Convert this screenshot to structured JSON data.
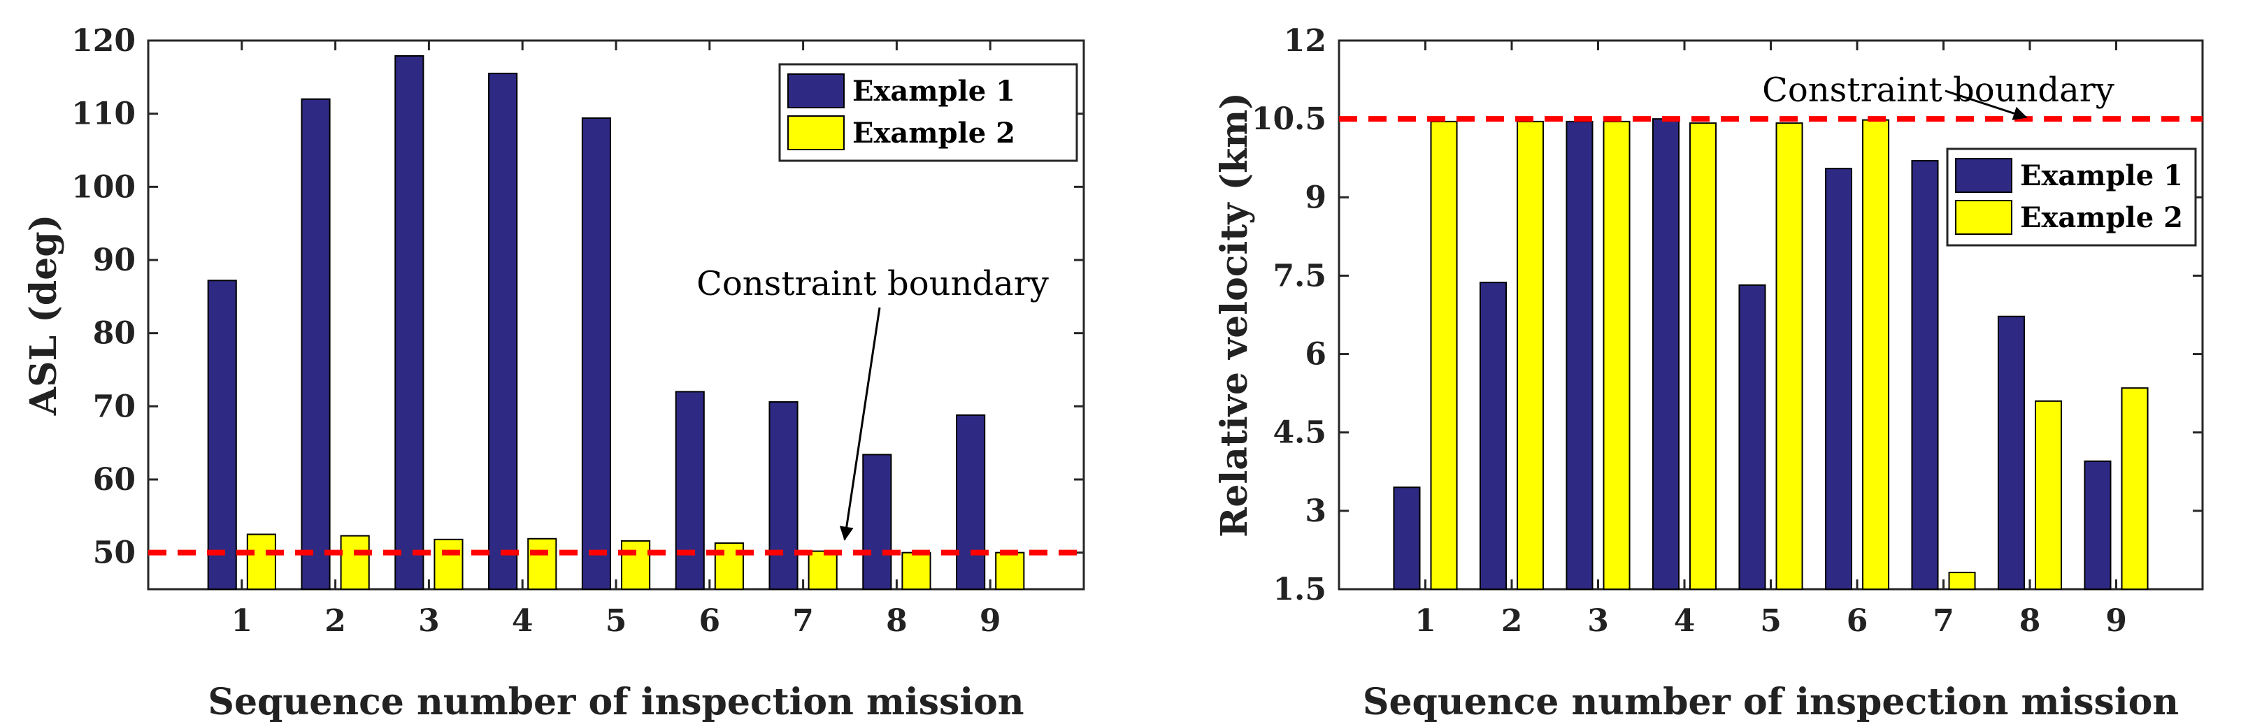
{
  "chart_data": [
    {
      "type": "bar",
      "title": "",
      "xlabel": "Sequence number of inspection mission",
      "ylabel": "ASL (deg)",
      "categories": [
        "1",
        "2",
        "3",
        "4",
        "5",
        "6",
        "7",
        "8",
        "9"
      ],
      "ylim": [
        45,
        120
      ],
      "yticks": [
        "50",
        "60",
        "70",
        "80",
        "90",
        "100",
        "110",
        "120"
      ],
      "series": [
        {
          "name": "Example 1",
          "color": "#2e2a83",
          "values": [
            87.2,
            112.0,
            117.9,
            115.5,
            109.4,
            72.0,
            70.6,
            63.4,
            68.8
          ]
        },
        {
          "name": "Example 2",
          "color": "#ffff00",
          "values": [
            52.5,
            52.3,
            51.8,
            51.9,
            51.6,
            51.3,
            50.2,
            50.0,
            50.0
          ]
        }
      ],
      "constraint": {
        "value": 50,
        "color": "#ff0000",
        "label": "Constraint boundary"
      },
      "legend_position": "top-right",
      "grid": false
    },
    {
      "type": "bar",
      "title": "",
      "xlabel": "Sequence number of inspection mission",
      "ylabel": "Relative velocity (km)",
      "categories": [
        "1",
        "2",
        "3",
        "4",
        "5",
        "6",
        "7",
        "8",
        "9"
      ],
      "ylim": [
        1.5,
        12
      ],
      "yticks": [
        "1.5",
        "3",
        "4.5",
        "6",
        "7.5",
        "9",
        "10.5",
        "12"
      ],
      "series": [
        {
          "name": "Example 1",
          "color": "#2e2a83",
          "values": [
            3.45,
            7.37,
            10.45,
            10.5,
            7.32,
            9.55,
            9.7,
            6.72,
            3.95
          ]
        },
        {
          "name": "Example 2",
          "color": "#ffff00",
          "values": [
            10.45,
            10.45,
            10.45,
            10.42,
            10.42,
            10.48,
            1.82,
            5.1,
            5.35
          ]
        }
      ],
      "constraint": {
        "value": 10.5,
        "color": "#ff0000",
        "label": "Constraint boundary"
      },
      "legend_position": "right",
      "grid": false
    }
  ]
}
